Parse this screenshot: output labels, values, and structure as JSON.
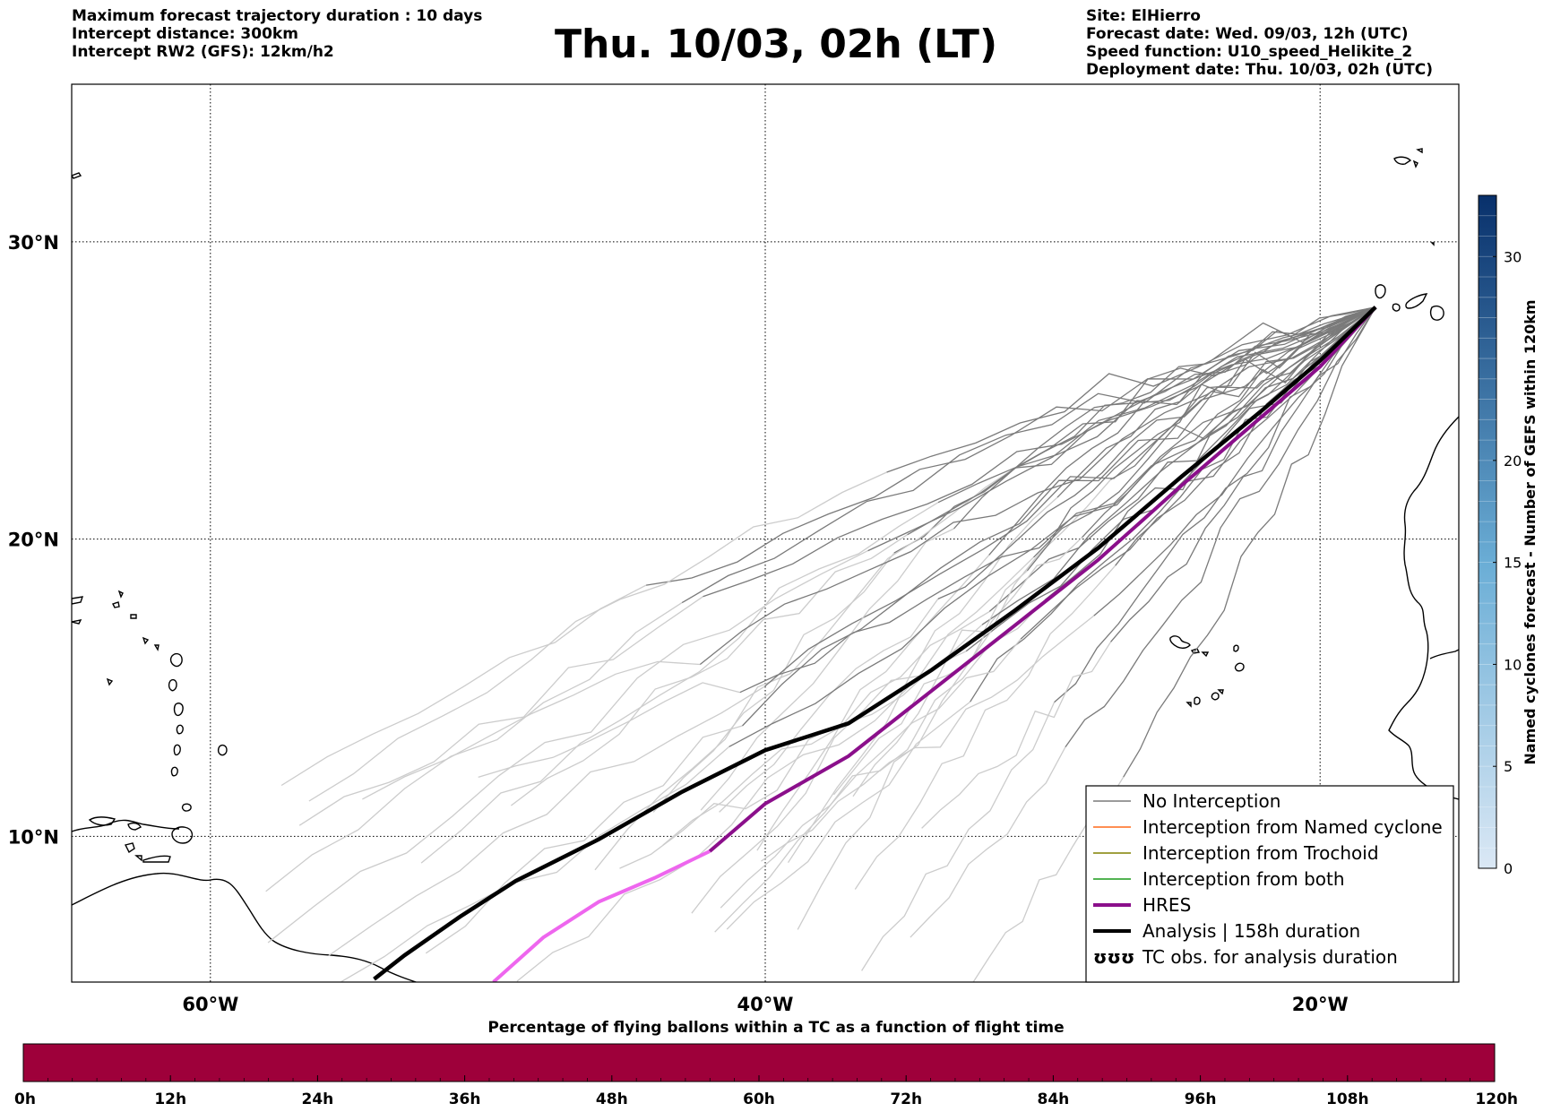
{
  "header": {
    "left_lines": [
      "Maximum forecast trajectory duration : 10 days",
      "Intercept distance: 300km",
      "Intercept RW2 (GFS):  12km/h2"
    ],
    "right_lines": [
      "Site: ElHierro",
      "Forecast date: Wed. 09/03, 12h (UTC)",
      "Speed function: U10_speed_Helikite_2",
      "Deployment date: Thu. 10/03, 02h (UTC)"
    ],
    "title": "Thu. 10/03, 02h (LT)"
  },
  "map": {
    "lon_ticks": [
      {
        "value": -60,
        "label": "60°W"
      },
      {
        "value": -40,
        "label": "40°W"
      },
      {
        "value": -20,
        "label": "20°W"
      }
    ],
    "lat_ticks": [
      {
        "value": 30,
        "label": "30°N"
      },
      {
        "value": 20,
        "label": "20°N"
      },
      {
        "value": 10,
        "label": "10°N"
      }
    ],
    "extent": {
      "lon_min": -65,
      "lon_max": -15,
      "lat_min": 5.1,
      "lat_max": 35.3
    },
    "colors": {
      "no_interception": "#7a7a7a",
      "no_interception_late": "#cccccc",
      "named_cyclone": "#ff6a1a",
      "trochoid": "#808000",
      "both": "#1a9a1a",
      "hres": "#8b0f8b",
      "hres_late": "#ee66ee",
      "analysis": "#000000"
    },
    "trajectories": {
      "analysis": [
        [
          -18.0,
          27.8
        ],
        [
          -20.0,
          26.0
        ],
        [
          -22.0,
          24.4
        ],
        [
          -25.0,
          22.1
        ],
        [
          -28.0,
          19.7
        ],
        [
          -31.0,
          17.6
        ],
        [
          -34.0,
          15.6
        ],
        [
          -37.0,
          13.8
        ],
        [
          -40.0,
          12.9
        ],
        [
          -43.0,
          11.5
        ],
        [
          -46.0,
          9.9
        ],
        [
          -49.0,
          8.5
        ],
        [
          -51.0,
          7.3
        ],
        [
          -53.0,
          6.0
        ],
        [
          -54.1,
          5.2
        ]
      ],
      "hres": [
        [
          -18.0,
          27.8
        ],
        [
          -20.0,
          25.8
        ],
        [
          -22.0,
          24.2
        ],
        [
          -25.0,
          21.8
        ],
        [
          -28.0,
          19.3
        ],
        [
          -31.0,
          17.1
        ],
        [
          -34.0,
          14.9
        ],
        [
          -37.0,
          12.7
        ],
        [
          -40.0,
          11.1
        ],
        [
          -42.0,
          9.5
        ],
        [
          -44.0,
          8.6
        ],
        [
          -46.0,
          7.8
        ],
        [
          -48.0,
          6.6
        ],
        [
          -49.8,
          5.1
        ]
      ],
      "hres_late_from_index": 9
    },
    "legend": [
      {
        "key": "no_interception",
        "label": "No Interception"
      },
      {
        "key": "named_cyclone",
        "label": "Interception from Named cyclone"
      },
      {
        "key": "trochoid",
        "label": "Interception from Trochoid"
      },
      {
        "key": "both",
        "label": "Interception from both"
      },
      {
        "key": "hres",
        "label": "HRES"
      },
      {
        "key": "analysis",
        "label": "Analysis | 158h duration"
      },
      {
        "key": "tc_obs",
        "label": "TC obs. for analysis duration",
        "icon": "ʊʊʊ"
      }
    ]
  },
  "colorbar": {
    "label": "Named cyclones forecast - Number of GEFS within 120km",
    "ticks": [
      0,
      5,
      10,
      15,
      20,
      30
    ],
    "max": 33,
    "color_low": "#dbe8f5",
    "color_high": "#08306b"
  },
  "bottom_bar": {
    "title": "Percentage of flying ballons within a TC as a function of flight time",
    "ticks": [
      "0h",
      "12h",
      "24h",
      "36h",
      "48h",
      "60h",
      "72h",
      "84h",
      "96h",
      "108h",
      "120h"
    ],
    "color": "#9e003a"
  }
}
